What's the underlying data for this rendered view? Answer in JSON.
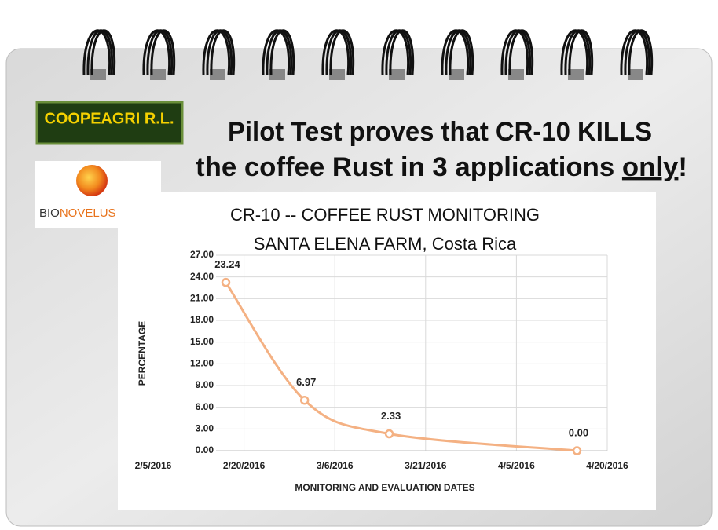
{
  "header": {
    "line1": "Pilot Test proves that CR-10 KILLS",
    "line2_before": "the coffee Rust in 3 applications ",
    "line2_emphasis": "only",
    "line2_after": "!"
  },
  "logos": {
    "coopeagri": "COOPEAGRI R.L.",
    "bionovelus_a": "BIO",
    "bionovelus_b": "NOVELUS"
  },
  "chart_data": {
    "type": "line",
    "title": [
      "CR-10 -- COFFEE RUST MONITORING",
      "SANTA ELENA FARM, Costa Rica"
    ],
    "x_label": "MONITORING AND EVALUATION DATES",
    "y_label": "PERCENTAGE",
    "x": [
      "2016-02-17",
      "2016-03-01",
      "2016-03-15",
      "2016-04-15"
    ],
    "series": [
      {
        "color": "#f4b183",
        "values": [
          23.24,
          6.97,
          2.33,
          0
        ],
        "value_labels": [
          "23.24",
          "6.97",
          "2.33",
          "0.00"
        ]
      }
    ],
    "xlim": [
      "2016-02-05",
      "2016-04-20"
    ],
    "xticks": [
      {
        "value": "2016-02-05",
        "label": "2/5/2016"
      },
      {
        "value": "2016-02-20",
        "label": "2/20/2016"
      },
      {
        "value": "2016-03-06",
        "label": "3/6/2016"
      },
      {
        "value": "2016-03-21",
        "label": "3/21/2016"
      },
      {
        "value": "2016-04-05",
        "label": "4/5/2016"
      },
      {
        "value": "2016-04-20",
        "label": "4/20/2016"
      }
    ],
    "ylim": [
      0,
      27
    ],
    "yticks": [
      {
        "value": 0,
        "label": "0.00"
      },
      {
        "value": 3,
        "label": "3.00"
      },
      {
        "value": 6,
        "label": "6.00"
      },
      {
        "value": 9,
        "label": "9.00"
      },
      {
        "value": 12,
        "label": "12.00"
      },
      {
        "value": 15,
        "label": "15.00"
      },
      {
        "value": 18,
        "label": "18.00"
      },
      {
        "value": 21,
        "label": "21.00"
      },
      {
        "value": 24,
        "label": "24.00"
      },
      {
        "value": 27,
        "label": "27.00"
      }
    ],
    "grid": true
  }
}
